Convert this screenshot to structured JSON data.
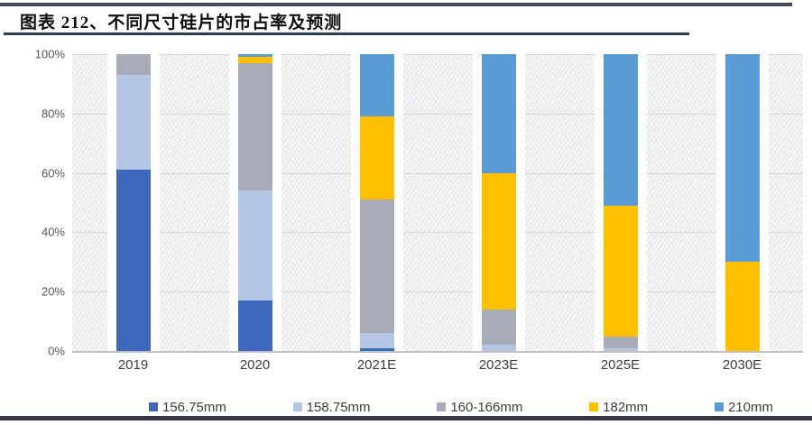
{
  "header": {
    "title": "图表 212、不同尺寸硅片的市占率及预测"
  },
  "chart_data": {
    "type": "bar",
    "subtype": "stacked-100-percent",
    "title": "图表 212、不同尺寸硅片的市占率及预测",
    "categories": [
      "2019",
      "2020",
      "2021E",
      "2023E",
      "2025E",
      "2030E"
    ],
    "series": [
      {
        "name": "156.75mm",
        "color": "#3D68BB",
        "values": [
          61,
          17,
          1,
          0,
          0,
          0
        ]
      },
      {
        "name": "158.75mm",
        "color": "#B3C6E4",
        "values": [
          32,
          37,
          5,
          2,
          1,
          0
        ]
      },
      {
        "name": "160-166mm",
        "color": "#A7ACB8",
        "values": [
          7,
          43,
          45,
          12,
          4,
          0
        ]
      },
      {
        "name": "182mm",
        "color": "#FFC000",
        "values": [
          0,
          2,
          28,
          46,
          44,
          30
        ]
      },
      {
        "name": "210mm",
        "color": "#5B9BD5",
        "values": [
          0,
          1,
          21,
          40,
          51,
          70
        ]
      }
    ],
    "xlabel": "",
    "ylabel": "",
    "ylim": [
      0,
      100
    ],
    "y_tick_labels": [
      "100%",
      "80%",
      "60%",
      "40%",
      "20%",
      "0%"
    ],
    "grid": true,
    "legend_position": "bottom",
    "plot_background": "diagonal-hatch"
  }
}
